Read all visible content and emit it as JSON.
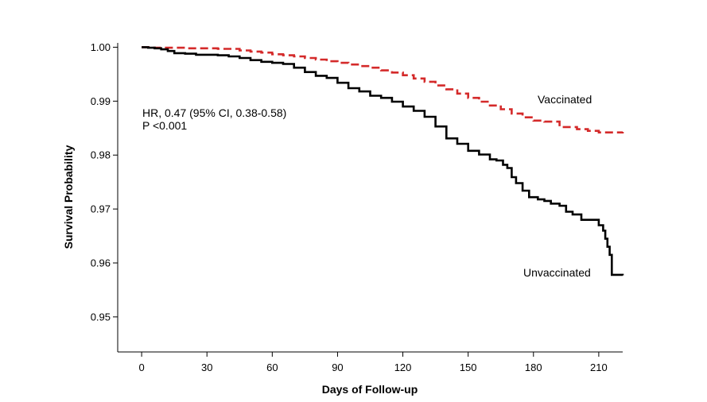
{
  "chart_data": {
    "type": "line",
    "subtype": "step (Kaplan-Meier survival curves)",
    "xlabel": "Days of Follow-up",
    "ylabel": "Survival Probability",
    "xlim": [
      -11,
      221
    ],
    "ylim": [
      0.9435,
      1.0008
    ],
    "xticks": [
      0,
      30,
      60,
      90,
      120,
      150,
      180,
      210
    ],
    "yticks": [
      0.95,
      0.96,
      0.97,
      0.98,
      0.99,
      1.0
    ],
    "ytick_labels": [
      "0.95",
      "0.96",
      "0.97",
      "0.98",
      "0.99",
      "1.00"
    ],
    "grid": false,
    "legend": "none (curves labelled directly)",
    "annotations": {
      "hr_line": "HR, 0.47 (95% CI, 0.38-0.58)",
      "p_line": "P <0.001"
    },
    "series": [
      {
        "name": "Vaccinated",
        "color": "#d42a2a",
        "line_style": "dashed",
        "x": [
          0,
          3,
          5,
          8,
          10,
          15,
          20,
          25,
          30,
          35,
          40,
          45,
          50,
          55,
          60,
          65,
          70,
          75,
          80,
          85,
          90,
          95,
          100,
          105,
          110,
          115,
          120,
          125,
          130,
          135,
          140,
          145,
          150,
          155,
          160,
          165,
          170,
          175,
          180,
          185,
          190,
          192,
          195,
          200,
          205,
          210,
          215,
          221
        ],
        "y": [
          1.0,
          1.0,
          0.9999,
          0.9999,
          0.9999,
          0.9999,
          0.9998,
          0.9998,
          0.9998,
          0.9997,
          0.9997,
          0.9994,
          0.9992,
          0.999,
          0.9987,
          0.9985,
          0.9983,
          0.998,
          0.9977,
          0.9974,
          0.9971,
          0.9968,
          0.9965,
          0.9962,
          0.9957,
          0.9953,
          0.9948,
          0.9942,
          0.9936,
          0.9929,
          0.9922,
          0.9914,
          0.9906,
          0.9899,
          0.9892,
          0.9885,
          0.9877,
          0.987,
          0.9864,
          0.9862,
          0.9862,
          0.9852,
          0.9852,
          0.9848,
          0.9845,
          0.9842,
          0.9842,
          0.9843
        ]
      },
      {
        "name": "Unvaccinated",
        "color": "#000000",
        "line_style": "solid",
        "x": [
          0,
          3,
          6,
          9,
          12,
          15,
          20,
          25,
          30,
          35,
          40,
          45,
          50,
          55,
          60,
          65,
          70,
          75,
          80,
          85,
          90,
          95,
          100,
          105,
          110,
          115,
          120,
          125,
          130,
          135,
          140,
          145,
          150,
          155,
          160,
          163,
          166,
          168,
          170,
          172,
          175,
          178,
          182,
          185,
          188,
          192,
          195,
          198,
          202,
          206,
          209,
          210,
          211,
          212,
          213,
          214,
          215,
          216,
          221
        ],
        "y": [
          1.0,
          0.9999,
          0.9998,
          0.9996,
          0.9993,
          0.9989,
          0.9988,
          0.9986,
          0.9986,
          0.9985,
          0.9983,
          0.998,
          0.9976,
          0.9973,
          0.9971,
          0.9969,
          0.9962,
          0.9954,
          0.9947,
          0.9943,
          0.9934,
          0.9924,
          0.9918,
          0.991,
          0.9906,
          0.9899,
          0.989,
          0.9882,
          0.9871,
          0.9853,
          0.9831,
          0.9821,
          0.9808,
          0.9801,
          0.9792,
          0.979,
          0.9782,
          0.9776,
          0.9759,
          0.9748,
          0.9734,
          0.9722,
          0.9718,
          0.9715,
          0.971,
          0.9706,
          0.9695,
          0.969,
          0.968,
          0.968,
          0.968,
          0.967,
          0.967,
          0.966,
          0.9645,
          0.963,
          0.9615,
          0.9578,
          0.9577
        ]
      }
    ],
    "series_labels": {
      "vaccinated": "Vaccinated",
      "unvaccinated": "Unvaccinated"
    }
  }
}
